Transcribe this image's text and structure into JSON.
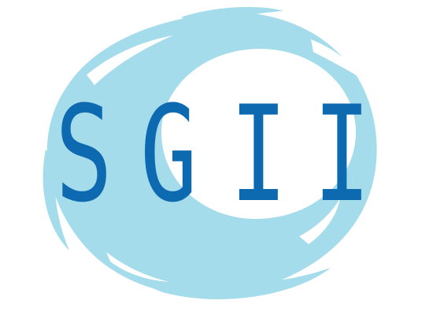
{
  "logo": {
    "letters": [
      "S",
      "G",
      "I",
      "I"
    ],
    "text_color": "#0e6ab0",
    "swirl_color": "#a4dcec"
  }
}
